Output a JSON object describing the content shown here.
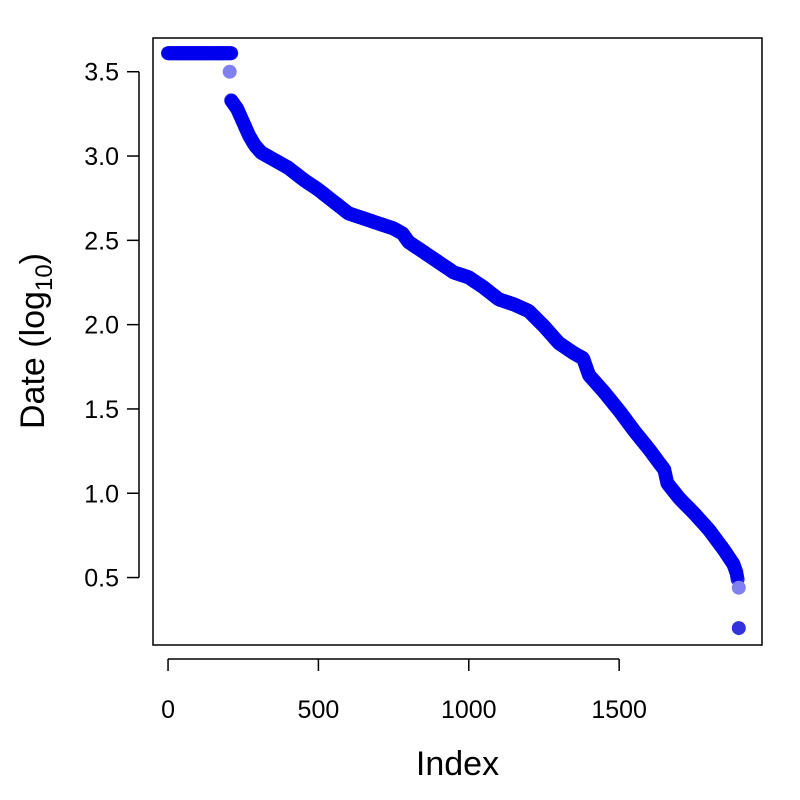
{
  "chart_data": {
    "type": "scatter",
    "title": "",
    "xlabel": "Index",
    "ylabel": "Date (log",
    "ylabel_subscript": "10",
    "ylabel_close": ")",
    "xlim": [
      -50,
      1975
    ],
    "ylim": [
      0.1,
      3.7
    ],
    "x_ticks": [
      0,
      500,
      1000,
      1500
    ],
    "x_tick_labels": [
      "0",
      "500",
      "1000",
      "1500"
    ],
    "y_ticks": [
      0.5,
      1.0,
      1.5,
      2.0,
      2.5,
      3.0,
      3.5
    ],
    "y_tick_labels": [
      "0.5",
      "1.0",
      "1.5",
      "2.0",
      "2.5",
      "3.0",
      "3.5"
    ],
    "grid": false,
    "legend": "none",
    "point_color": "#0000ee",
    "n_points": 1900,
    "curve_knots": [
      [
        210,
        3.33
      ],
      [
        230,
        3.28
      ],
      [
        250,
        3.2
      ],
      [
        270,
        3.12
      ],
      [
        290,
        3.06
      ],
      [
        310,
        3.02
      ],
      [
        350,
        2.98
      ],
      [
        400,
        2.93
      ],
      [
        450,
        2.86
      ],
      [
        500,
        2.8
      ],
      [
        550,
        2.73
      ],
      [
        600,
        2.66
      ],
      [
        650,
        2.63
      ],
      [
        700,
        2.6
      ],
      [
        750,
        2.57
      ],
      [
        780,
        2.54
      ],
      [
        800,
        2.49
      ],
      [
        850,
        2.43
      ],
      [
        900,
        2.37
      ],
      [
        950,
        2.31
      ],
      [
        1000,
        2.28
      ],
      [
        1050,
        2.22
      ],
      [
        1100,
        2.15
      ],
      [
        1150,
        2.12
      ],
      [
        1200,
        2.08
      ],
      [
        1250,
        1.99
      ],
      [
        1300,
        1.89
      ],
      [
        1350,
        1.83
      ],
      [
        1380,
        1.8
      ],
      [
        1400,
        1.7
      ],
      [
        1450,
        1.6
      ],
      [
        1500,
        1.49
      ],
      [
        1550,
        1.37
      ],
      [
        1600,
        1.26
      ],
      [
        1650,
        1.14
      ],
      [
        1660,
        1.06
      ],
      [
        1700,
        0.97
      ],
      [
        1750,
        0.88
      ],
      [
        1800,
        0.78
      ],
      [
        1850,
        0.66
      ],
      [
        1880,
        0.58
      ],
      [
        1890,
        0.53
      ],
      [
        1895,
        0.48
      ]
    ],
    "flat_segment": {
      "x_from": 0,
      "x_to": 210,
      "y": 3.61
    },
    "extra_points": [
      {
        "x": 205,
        "y": 3.5,
        "color": "#8080f0"
      },
      {
        "x": 1898,
        "y": 0.44,
        "color": "#8080f0"
      },
      {
        "x": 1898,
        "y": 0.2,
        "color": "#3333dd"
      }
    ]
  }
}
